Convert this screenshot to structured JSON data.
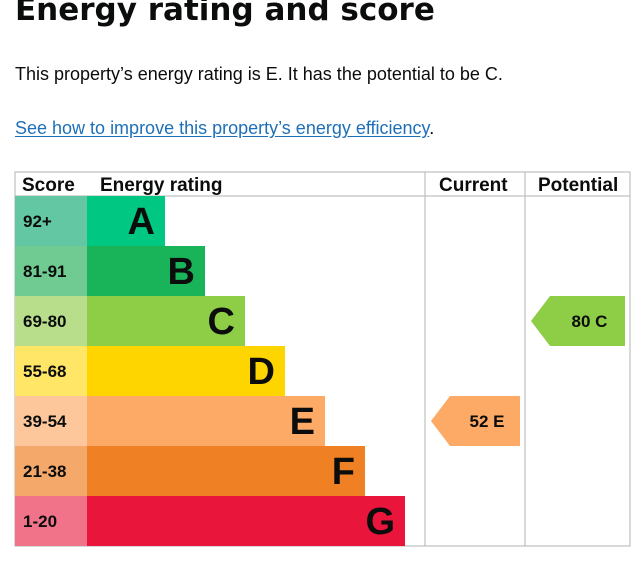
{
  "heading": "Energy rating and score",
  "summary": "This property’s energy rating is E. It has the potential to be C.",
  "improve_link": {
    "label": "See how to improve this property’s energy efficiency",
    "suffix": "."
  },
  "chart_data": {
    "type": "bar",
    "columns": [
      "Score",
      "Energy rating",
      "Current",
      "Potential"
    ],
    "bands": [
      {
        "letter": "A",
        "range": "92+",
        "color": "#00c781",
        "score_bg": "#64c7a4"
      },
      {
        "letter": "B",
        "range": "81-91",
        "color": "#19b459",
        "score_bg": "#6fcb91"
      },
      {
        "letter": "C",
        "range": "69-80",
        "color": "#8dce46",
        "score_bg": "#b8de8c"
      },
      {
        "letter": "D",
        "range": "55-68",
        "color": "#ffd500",
        "score_bg": "#ffe666"
      },
      {
        "letter": "E",
        "range": "39-54",
        "color": "#fcaa65",
        "score_bg": "#fdc79b"
      },
      {
        "letter": "F",
        "range": "21-38",
        "color": "#ef8023",
        "score_bg": "#f4a96b"
      },
      {
        "letter": "G",
        "range": "1-20",
        "color": "#e9153b",
        "score_bg": "#f0738a"
      }
    ],
    "current": {
      "score": 52,
      "band": "E",
      "label": "52 E"
    },
    "potential": {
      "score": 80,
      "band": "C",
      "label": "80 C"
    }
  }
}
